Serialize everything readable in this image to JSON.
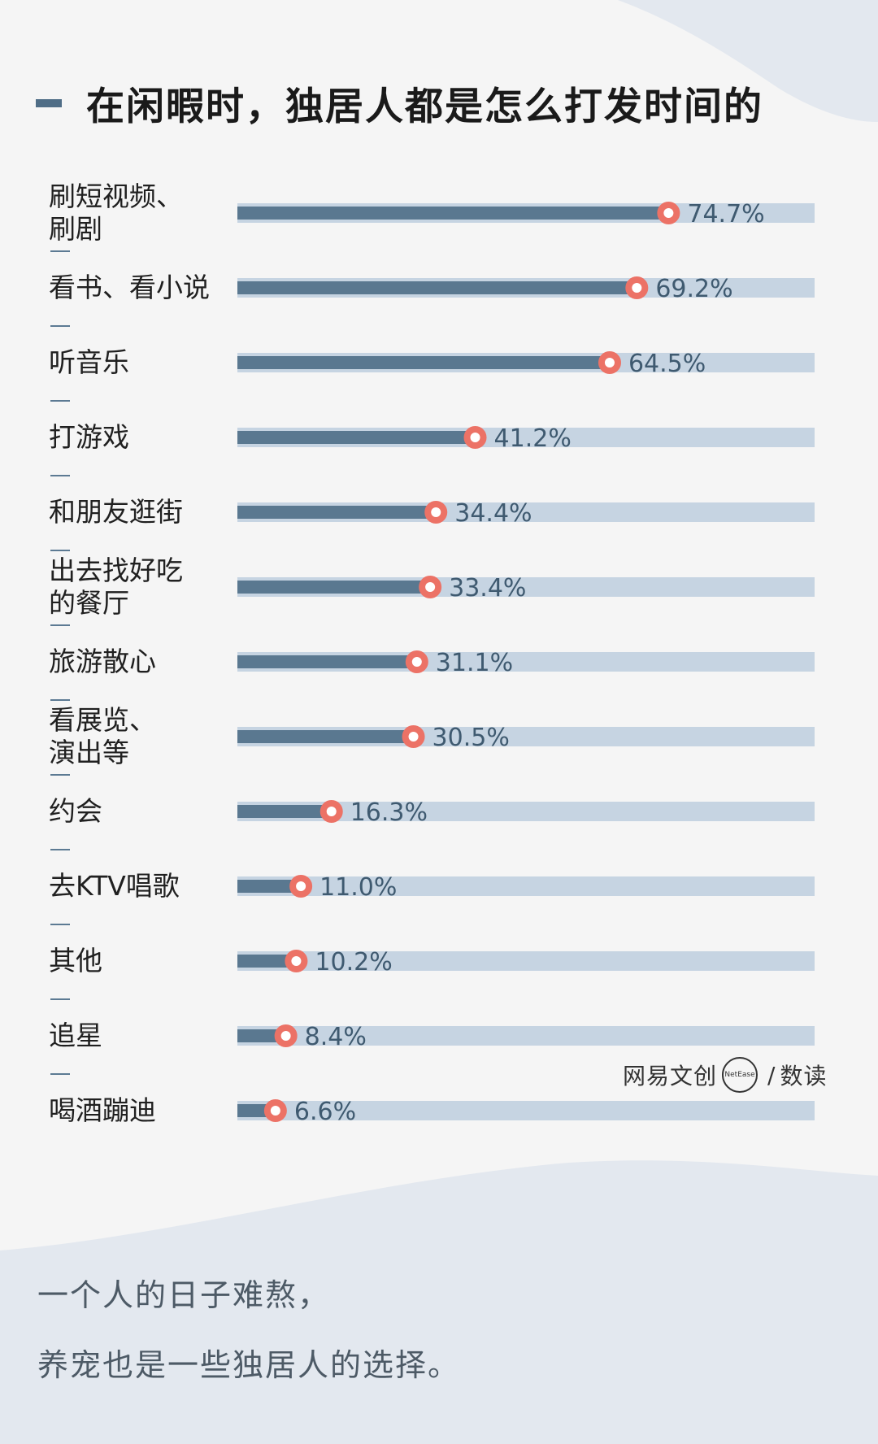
{
  "title": "在闲暇时，独居人都是怎么打发时间的",
  "chart_data": {
    "type": "bar",
    "orientation": "horizontal",
    "title": "在闲暇时，独居人都是怎么打发时间的",
    "categories": [
      "刷短视频、\n刷剧",
      "看书、看小说",
      "听音乐",
      "打游戏",
      "和朋友逛街",
      "出去找好吃\n的餐厅",
      "旅游散心",
      "看展览、\n演出等",
      "约会",
      "去KTV唱歌",
      "其他",
      "追星",
      "喝酒蹦迪"
    ],
    "values": [
      74.7,
      69.2,
      64.5,
      41.2,
      34.4,
      33.4,
      31.1,
      30.5,
      16.3,
      11.0,
      10.2,
      8.4,
      6.6
    ],
    "value_labels": [
      "74.7%",
      "69.2%",
      "64.5%",
      "41.2%",
      "34.4%",
      "33.4%",
      "31.1%",
      "30.5%",
      "16.3%",
      "11.0%",
      "10.2%",
      "8.4%",
      "6.6%"
    ],
    "xlim": [
      0,
      100
    ],
    "grid": false,
    "colors": {
      "bar": "#5a7890",
      "track": "#c6d4e2",
      "marker": "#ec7266"
    }
  },
  "logo": {
    "text_left": "网易文创",
    "circle_text": "NetEase",
    "slash": "/",
    "text_right": "数读"
  },
  "footer": {
    "line1": "一个人的日子难熬，",
    "line2": "养宠也是一些独居人的选择。"
  }
}
